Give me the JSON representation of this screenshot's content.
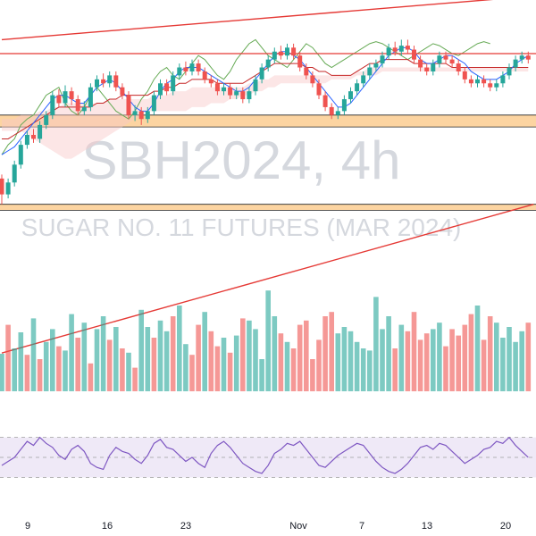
{
  "watermark": {
    "symbol": "SBH2024, 4h",
    "name": "SUGAR NO. 11 FUTURES (MAR 2024)"
  },
  "colors": {
    "up": "#26a69a",
    "down": "#ef5350",
    "trendline": "#e53935",
    "zone_fill": "#fbc98a",
    "zone_edge": "#222222",
    "ichimoku_lagging": "#66aa55",
    "ichimoku_base": "#c62828",
    "ichimoku_conversion": "#2962ff",
    "cloud_fill": "#f8c8c8",
    "rsi_line": "#7e57c2",
    "rsi_band": "#ede7f6"
  },
  "chart_data": [
    {
      "type": "candlestick",
      "title": "",
      "x_ticks": [
        "9",
        "16",
        "23",
        "Nov",
        "7",
        "13",
        "20"
      ],
      "price_range": [
        0,
        100
      ],
      "candles": [
        [
          28,
          20,
          30,
          15
        ],
        [
          20,
          26,
          28,
          18
        ],
        [
          26,
          35,
          37,
          24
        ],
        [
          35,
          45,
          47,
          33
        ],
        [
          45,
          50,
          52,
          43
        ],
        [
          50,
          48,
          53,
          46
        ],
        [
          48,
          55,
          57,
          46
        ],
        [
          55,
          60,
          62,
          53
        ],
        [
          60,
          70,
          72,
          58
        ],
        [
          70,
          66,
          73,
          64
        ],
        [
          66,
          72,
          75,
          64
        ],
        [
          72,
          68,
          74,
          65
        ],
        [
          68,
          62,
          70,
          60
        ],
        [
          62,
          64,
          67,
          60
        ],
        [
          64,
          74,
          76,
          62
        ],
        [
          74,
          78,
          80,
          72
        ],
        [
          78,
          76,
          81,
          74
        ],
        [
          76,
          80,
          82,
          74
        ],
        [
          80,
          74,
          82,
          72
        ],
        [
          74,
          70,
          76,
          68
        ],
        [
          70,
          60,
          72,
          58
        ],
        [
          60,
          62,
          65,
          57
        ],
        [
          62,
          58,
          64,
          55
        ],
        [
          58,
          62,
          64,
          56
        ],
        [
          62,
          70,
          72,
          60
        ],
        [
          70,
          76,
          78,
          68
        ],
        [
          76,
          72,
          78,
          70
        ],
        [
          72,
          80,
          82,
          70
        ],
        [
          80,
          84,
          86,
          78
        ],
        [
          84,
          82,
          87,
          80
        ],
        [
          82,
          86,
          88,
          80
        ],
        [
          86,
          82,
          88,
          80
        ],
        [
          82,
          78,
          84,
          76
        ],
        [
          78,
          76,
          80,
          74
        ],
        [
          76,
          72,
          78,
          70
        ],
        [
          72,
          74,
          76,
          70
        ],
        [
          74,
          70,
          76,
          68
        ],
        [
          70,
          72,
          74,
          68
        ],
        [
          72,
          68,
          74,
          66
        ],
        [
          68,
          72,
          74,
          66
        ],
        [
          72,
          78,
          80,
          70
        ],
        [
          78,
          84,
          86,
          76
        ],
        [
          84,
          88,
          90,
          82
        ],
        [
          88,
          92,
          94,
          86
        ],
        [
          92,
          90,
          95,
          88
        ],
        [
          90,
          94,
          96,
          88
        ],
        [
          94,
          90,
          96,
          88
        ],
        [
          90,
          84,
          92,
          82
        ],
        [
          84,
          80,
          86,
          78
        ],
        [
          80,
          76,
          82,
          74
        ],
        [
          76,
          70,
          78,
          68
        ],
        [
          70,
          64,
          72,
          62
        ],
        [
          64,
          60,
          66,
          58
        ],
        [
          60,
          62,
          64,
          58
        ],
        [
          62,
          68,
          70,
          60
        ],
        [
          68,
          72,
          74,
          66
        ],
        [
          72,
          76,
          78,
          70
        ],
        [
          76,
          80,
          82,
          74
        ],
        [
          80,
          84,
          86,
          78
        ],
        [
          84,
          86,
          88,
          82
        ],
        [
          86,
          90,
          92,
          84
        ],
        [
          90,
          94,
          96,
          88
        ],
        [
          94,
          92,
          97,
          90
        ],
        [
          92,
          95,
          98,
          90
        ],
        [
          95,
          93,
          98,
          91
        ],
        [
          93,
          88,
          95,
          86
        ],
        [
          88,
          84,
          90,
          82
        ],
        [
          84,
          82,
          86,
          80
        ],
        [
          82,
          86,
          88,
          80
        ],
        [
          86,
          90,
          92,
          84
        ],
        [
          90,
          88,
          92,
          86
        ],
        [
          88,
          86,
          90,
          84
        ],
        [
          86,
          82,
          88,
          80
        ],
        [
          82,
          78,
          84,
          76
        ],
        [
          78,
          76,
          80,
          74
        ],
        [
          76,
          78,
          80,
          74
        ],
        [
          78,
          76,
          80,
          74
        ],
        [
          76,
          74,
          78,
          72
        ],
        [
          74,
          76,
          78,
          72
        ],
        [
          76,
          80,
          82,
          74
        ],
        [
          80,
          84,
          86,
          78
        ],
        [
          84,
          88,
          90,
          82
        ],
        [
          88,
          90,
          92,
          86
        ],
        [
          90,
          88,
          92,
          86
        ]
      ],
      "ichimoku": {
        "lagging_span": [
          40,
          45,
          48,
          55,
          58,
          60,
          65,
          70,
          72,
          74,
          66,
          62,
          60,
          64,
          70,
          74,
          70,
          66,
          62,
          60,
          58,
          62,
          68,
          72,
          78,
          82,
          84,
          80,
          78,
          82,
          86,
          90,
          88,
          84,
          80,
          78,
          82,
          88,
          92,
          96,
          98,
          94,
          90,
          88,
          86,
          84,
          88,
          92,
          96,
          94,
          90,
          86,
          84,
          86,
          88,
          90,
          92,
          94,
          96,
          97,
          96,
          94,
          92,
          90,
          88,
          90,
          92,
          94,
          96,
          95,
          93,
          91,
          90,
          92,
          94,
          96,
          97,
          96
        ],
        "base_line": [
          48,
          48,
          50,
          52,
          54,
          56,
          58,
          60,
          62,
          64,
          64,
          64,
          64,
          64,
          64,
          66,
          66,
          68,
          68,
          70,
          70,
          70,
          70,
          70,
          72,
          72,
          74,
          74,
          76,
          76,
          78,
          78,
          78,
          78,
          76,
          76,
          76,
          76,
          76,
          78,
          80,
          82,
          84,
          86,
          86,
          86,
          86,
          86,
          84,
          84,
          82,
          82,
          80,
          80,
          80,
          80,
          82,
          84,
          86,
          86,
          88,
          88,
          88,
          88,
          88,
          86,
          86,
          86,
          86,
          86,
          86,
          84,
          84,
          84,
          84,
          84,
          84,
          84,
          84,
          84,
          84,
          84,
          84,
          84
        ],
        "conversion_line": [
          40,
          42,
          44,
          48,
          52,
          56,
          60,
          64,
          68,
          70,
          70,
          68,
          66,
          66,
          70,
          74,
          76,
          78,
          76,
          72,
          68,
          64,
          62,
          62,
          66,
          72,
          76,
          78,
          82,
          84,
          84,
          84,
          82,
          80,
          78,
          76,
          74,
          72,
          72,
          74,
          78,
          82,
          86,
          90,
          92,
          92,
          90,
          88,
          84,
          80,
          76,
          72,
          68,
          64,
          64,
          66,
          70,
          74,
          78,
          82,
          86,
          90,
          92,
          94,
          94,
          92,
          88,
          86,
          86,
          88,
          90,
          90,
          88,
          86,
          82,
          80,
          78,
          78,
          78,
          80,
          82,
          86,
          88,
          90
        ],
        "cloud_a": [
          58,
          58,
          58,
          60,
          60,
          60,
          62,
          62,
          64,
          64,
          66,
          66,
          66,
          66,
          66,
          66,
          66,
          68,
          68,
          68,
          68,
          68,
          68,
          68,
          70,
          70,
          70,
          72,
          72,
          72,
          74,
          74,
          74,
          74,
          74,
          74,
          74,
          74,
          74,
          76,
          76,
          78,
          78,
          80,
          80,
          80,
          80,
          80,
          80,
          80,
          80,
          80,
          80,
          80,
          80,
          80,
          82,
          82,
          84,
          84,
          84,
          84,
          84,
          84,
          84,
          84,
          84,
          84,
          84,
          84,
          84,
          84,
          84,
          84,
          84,
          84,
          84,
          84,
          84,
          84,
          84,
          84,
          84,
          84
        ],
        "cloud_b": [
          52,
          52,
          52,
          52,
          50,
          48,
          46,
          44,
          42,
          40,
          38,
          38,
          40,
          42,
          44,
          46,
          48,
          50,
          52,
          54,
          56,
          58,
          60,
          62,
          62,
          62,
          62,
          62,
          62,
          62,
          64,
          64,
          64,
          66,
          66,
          66,
          68,
          68,
          70,
          70,
          72,
          72,
          74,
          74,
          76,
          76,
          76,
          76,
          76,
          76,
          76,
          76,
          78,
          78,
          78,
          78,
          80,
          80,
          80,
          80,
          82,
          82,
          82,
          82,
          82,
          82,
          82,
          82,
          82,
          82,
          82,
          82,
          82,
          82,
          82,
          82,
          82,
          82,
          82,
          82,
          82,
          82,
          82,
          82
        ]
      },
      "support_resistance_zones": [
        {
          "low": 54,
          "high": 60
        },
        {
          "low": 12,
          "high": 15
        }
      ],
      "trendlines": [
        {
          "from": [
            0,
            98
          ],
          "to": [
            83,
            120
          ]
        },
        {
          "from": [
            0,
            -60
          ],
          "to": [
            83,
            15
          ]
        }
      ],
      "horizontal_lines": [
        100
      ]
    },
    {
      "type": "bar",
      "title": "",
      "series_name": "",
      "values": [
        35,
        62,
        40,
        55,
        34,
        68,
        30,
        46,
        58,
        42,
        38,
        72,
        50,
        64,
        26,
        58,
        70,
        48,
        60,
        40,
        36,
        22,
        76,
        60,
        50,
        66,
        56,
        70,
        80,
        44,
        34,
        62,
        74,
        56,
        42,
        50,
        36,
        52,
        68,
        66,
        58,
        30,
        94,
        70,
        54,
        46,
        40,
        62,
        66,
        30,
        48,
        70,
        74,
        54,
        60,
        56,
        46,
        40,
        38,
        88,
        58,
        70,
        40,
        62,
        56,
        74,
        48,
        54,
        58,
        64,
        42,
        58,
        52,
        62,
        72,
        80,
        48,
        70,
        64,
        50,
        60,
        46,
        56,
        64
      ],
      "up_flags": [
        1,
        0,
        1,
        1,
        0,
        1,
        0,
        1,
        1,
        0,
        1,
        1,
        0,
        1,
        0,
        1,
        1,
        0,
        1,
        0,
        1,
        0,
        1,
        1,
        0,
        1,
        1,
        0,
        1,
        1,
        0,
        0,
        1,
        0,
        0,
        1,
        0,
        1,
        0,
        1,
        1,
        1,
        1,
        1,
        0,
        1,
        0,
        0,
        0,
        0,
        0,
        0,
        0,
        1,
        1,
        1,
        1,
        1,
        1,
        1,
        1,
        1,
        0,
        1,
        0,
        0,
        0,
        0,
        1,
        1,
        0,
        0,
        0,
        0,
        0,
        1,
        0,
        0,
        1,
        1,
        1,
        1,
        1,
        0
      ],
      "ylim": [
        0,
        100
      ]
    },
    {
      "type": "line",
      "title": "",
      "series_name": "",
      "values": [
        42,
        46,
        50,
        58,
        66,
        62,
        70,
        64,
        60,
        52,
        48,
        58,
        62,
        56,
        44,
        40,
        38,
        52,
        60,
        56,
        54,
        48,
        44,
        52,
        64,
        68,
        60,
        58,
        52,
        46,
        50,
        44,
        40,
        54,
        62,
        66,
        60,
        52,
        44,
        40,
        36,
        34,
        42,
        54,
        58,
        64,
        62,
        66,
        58,
        50,
        42,
        40,
        46,
        52,
        56,
        60,
        64,
        62,
        54,
        46,
        40,
        36,
        34,
        38,
        44,
        52,
        60,
        62,
        58,
        64,
        62,
        56,
        50,
        44,
        48,
        52,
        58,
        60,
        66,
        64,
        70,
        62,
        56,
        50
      ],
      "ylim": [
        0,
        100
      ],
      "bands": [
        30,
        50,
        70
      ]
    }
  ]
}
